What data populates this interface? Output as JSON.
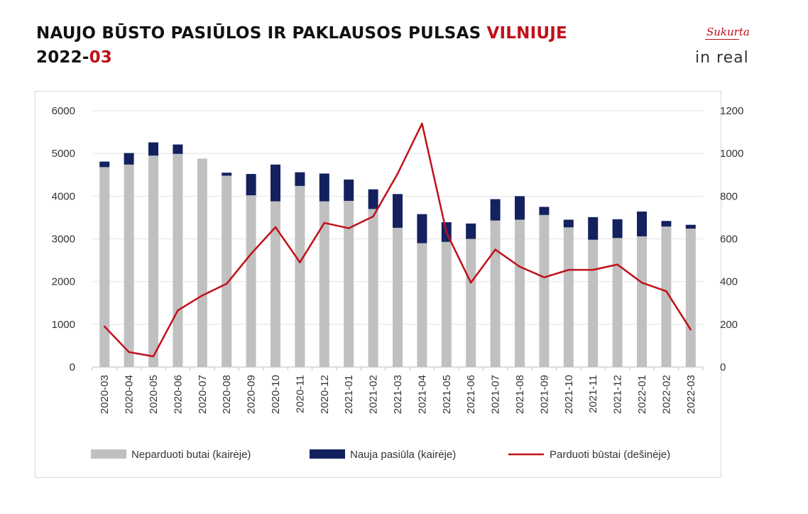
{
  "header": {
    "title_main": "NAUJO BŪSTO PASIŪLOS IR PAKLAUSOS PULSAS ",
    "title_accent": "VILNIUJE",
    "date_prefix": "2022-",
    "date_accent": "03"
  },
  "logo": {
    "script_text": "Sukurta",
    "brand_text": "in real"
  },
  "colors": {
    "unsold": "#c0c0c0",
    "new_supply": "#13215e",
    "sold_line": "#c0101a",
    "grid": "#e3e3e3",
    "accent": "#c0101a"
  },
  "chart_data": {
    "type": "bar",
    "stacked": true,
    "categories": [
      "2020-03",
      "2020-04",
      "2020-05",
      "2020-06",
      "2020-07",
      "2020-08",
      "2020-09",
      "2020-10",
      "2020-11",
      "2020-12",
      "2021-01",
      "2021-02",
      "2021-03",
      "2021-04",
      "2021-05",
      "2021-06",
      "2021-07",
      "2021-08",
      "2021-09",
      "2021-10",
      "2021-11",
      "2021-12",
      "2022-01",
      "2022-02",
      "2022-03"
    ],
    "series": [
      {
        "name": "Neparduoti butai (kairėje)",
        "chart_type": "bar",
        "axis": "left",
        "color": "#c0c0c0",
        "values": [
          4680,
          4740,
          4950,
          4990,
          4880,
          4480,
          4020,
          3880,
          4240,
          3880,
          3890,
          3700,
          3260,
          2900,
          2930,
          3000,
          3430,
          3450,
          3560,
          3270,
          2980,
          3020,
          3060,
          3290,
          3240
        ]
      },
      {
        "name": "Nauja pasiūla (kairėje)",
        "chart_type": "bar",
        "axis": "left",
        "color": "#13215e",
        "values": [
          130,
          270,
          310,
          220,
          0,
          70,
          500,
          860,
          320,
          650,
          500,
          460,
          790,
          680,
          460,
          360,
          500,
          550,
          190,
          180,
          530,
          440,
          580,
          130,
          90
        ]
      },
      {
        "name": "Parduoti būstai (dešinėje)",
        "chart_type": "line",
        "axis": "right",
        "color": "#c0101a",
        "values": [
          190,
          70,
          50,
          265,
          335,
          390,
          530,
          655,
          490,
          675,
          650,
          705,
          905,
          1140,
          630,
          395,
          550,
          470,
          420,
          455,
          455,
          480,
          395,
          355,
          175
        ]
      }
    ],
    "y_left": {
      "min": 0,
      "max": 6000,
      "ticks": [
        0,
        1000,
        2000,
        3000,
        4000,
        5000,
        6000
      ]
    },
    "y_right": {
      "min": 0,
      "max": 1200,
      "ticks": [
        0,
        200,
        400,
        600,
        800,
        1000,
        1200
      ]
    },
    "grid": true,
    "legend_position": "bottom"
  }
}
